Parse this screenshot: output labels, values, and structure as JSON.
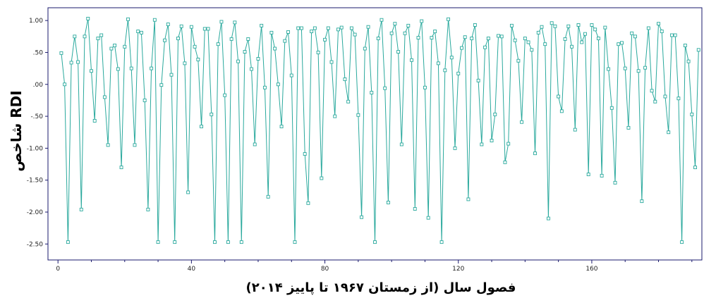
{
  "chart_data": {
    "type": "line",
    "xlabel": "فصول سال (از زمستان ۱۹۶۷ تا پاییز ۲۰۱۴)",
    "ylabel": "شاخص RDI",
    "xlim": [
      -3,
      193
    ],
    "ylim": [
      -2.75,
      1.2
    ],
    "xticks": [
      0,
      40,
      80,
      120,
      160
    ],
    "xtick_labels": [
      "0",
      "40",
      "80",
      "120",
      "160"
    ],
    "yticks": [
      1.0,
      0.5,
      0.0,
      -0.5,
      -1.0,
      -1.5,
      -2.0,
      -2.5
    ],
    "ytick_labels": [
      "1.00",
      ".50",
      ".00",
      "-.50",
      "-1.00",
      "-1.50",
      "-2.00",
      "-2.50"
    ],
    "grid": false,
    "colors": {
      "line": "#2aa99d",
      "marker": "#2aa99d",
      "axis": "#1a1a6e"
    },
    "series": [
      {
        "values": [
          0.49,
          0.0,
          -2.47,
          0.34,
          0.75,
          0.35,
          -1.96,
          0.75,
          1.03,
          0.21,
          -0.57,
          0.72,
          0.77,
          -0.2,
          -0.95,
          0.56,
          0.61,
          0.24,
          -1.3,
          0.59,
          1.02,
          0.25,
          -0.95,
          0.83,
          0.81,
          -0.25,
          -1.96,
          0.25,
          1.01,
          -2.47,
          -0.01,
          0.69,
          0.94,
          0.15,
          -2.47,
          0.72,
          0.91,
          0.33,
          -1.69,
          0.9,
          0.59,
          0.39,
          -0.66,
          0.87,
          0.87,
          -0.47,
          -2.47,
          0.63,
          0.98,
          -0.17,
          -2.47,
          0.71,
          0.97,
          0.36,
          -2.47,
          0.51,
          0.71,
          0.24,
          -0.94,
          0.4,
          0.92,
          -0.05,
          -1.76,
          0.81,
          0.56,
          0.0,
          -0.66,
          0.68,
          0.82,
          0.14,
          -2.47,
          0.88,
          0.88,
          -1.09,
          -1.86,
          0.83,
          0.88,
          0.5,
          -1.47,
          0.7,
          0.88,
          0.35,
          -0.5,
          0.86,
          0.89,
          0.08,
          -0.27,
          0.88,
          0.78,
          -0.48,
          -2.08,
          0.56,
          0.9,
          -0.13,
          -2.47,
          0.72,
          1.01,
          -0.06,
          -1.85,
          0.8,
          0.95,
          0.51,
          -0.94,
          0.8,
          0.92,
          0.38,
          -1.95,
          0.73,
          0.99,
          -0.05,
          -2.09,
          0.73,
          0.83,
          0.33,
          -2.47,
          0.22,
          1.02,
          0.42,
          -1.0,
          0.17,
          0.57,
          0.74,
          -1.8,
          0.72,
          0.93,
          0.06,
          -0.94,
          0.58,
          0.72,
          -0.88,
          -0.47,
          0.76,
          0.75,
          -1.22,
          -0.93,
          0.92,
          0.69,
          0.37,
          -0.59,
          0.72,
          0.66,
          0.54,
          -1.08,
          0.81,
          0.9,
          0.63,
          -2.1,
          0.96,
          0.91,
          -0.19,
          -0.42,
          0.71,
          0.91,
          0.59,
          -0.71,
          0.93,
          0.66,
          0.79,
          -1.41,
          0.93,
          0.86,
          0.72,
          -1.43,
          0.89,
          0.24,
          -0.37,
          -1.54,
          0.63,
          0.65,
          0.25,
          -0.68,
          0.8,
          0.75,
          0.21,
          -1.83,
          0.26,
          0.88,
          -0.1,
          -0.27,
          0.95,
          0.83,
          -0.19,
          -0.75,
          0.77,
          0.77,
          -0.22,
          -2.47,
          0.61,
          0.36,
          -0.47,
          -1.3,
          0.54
        ]
      }
    ]
  }
}
